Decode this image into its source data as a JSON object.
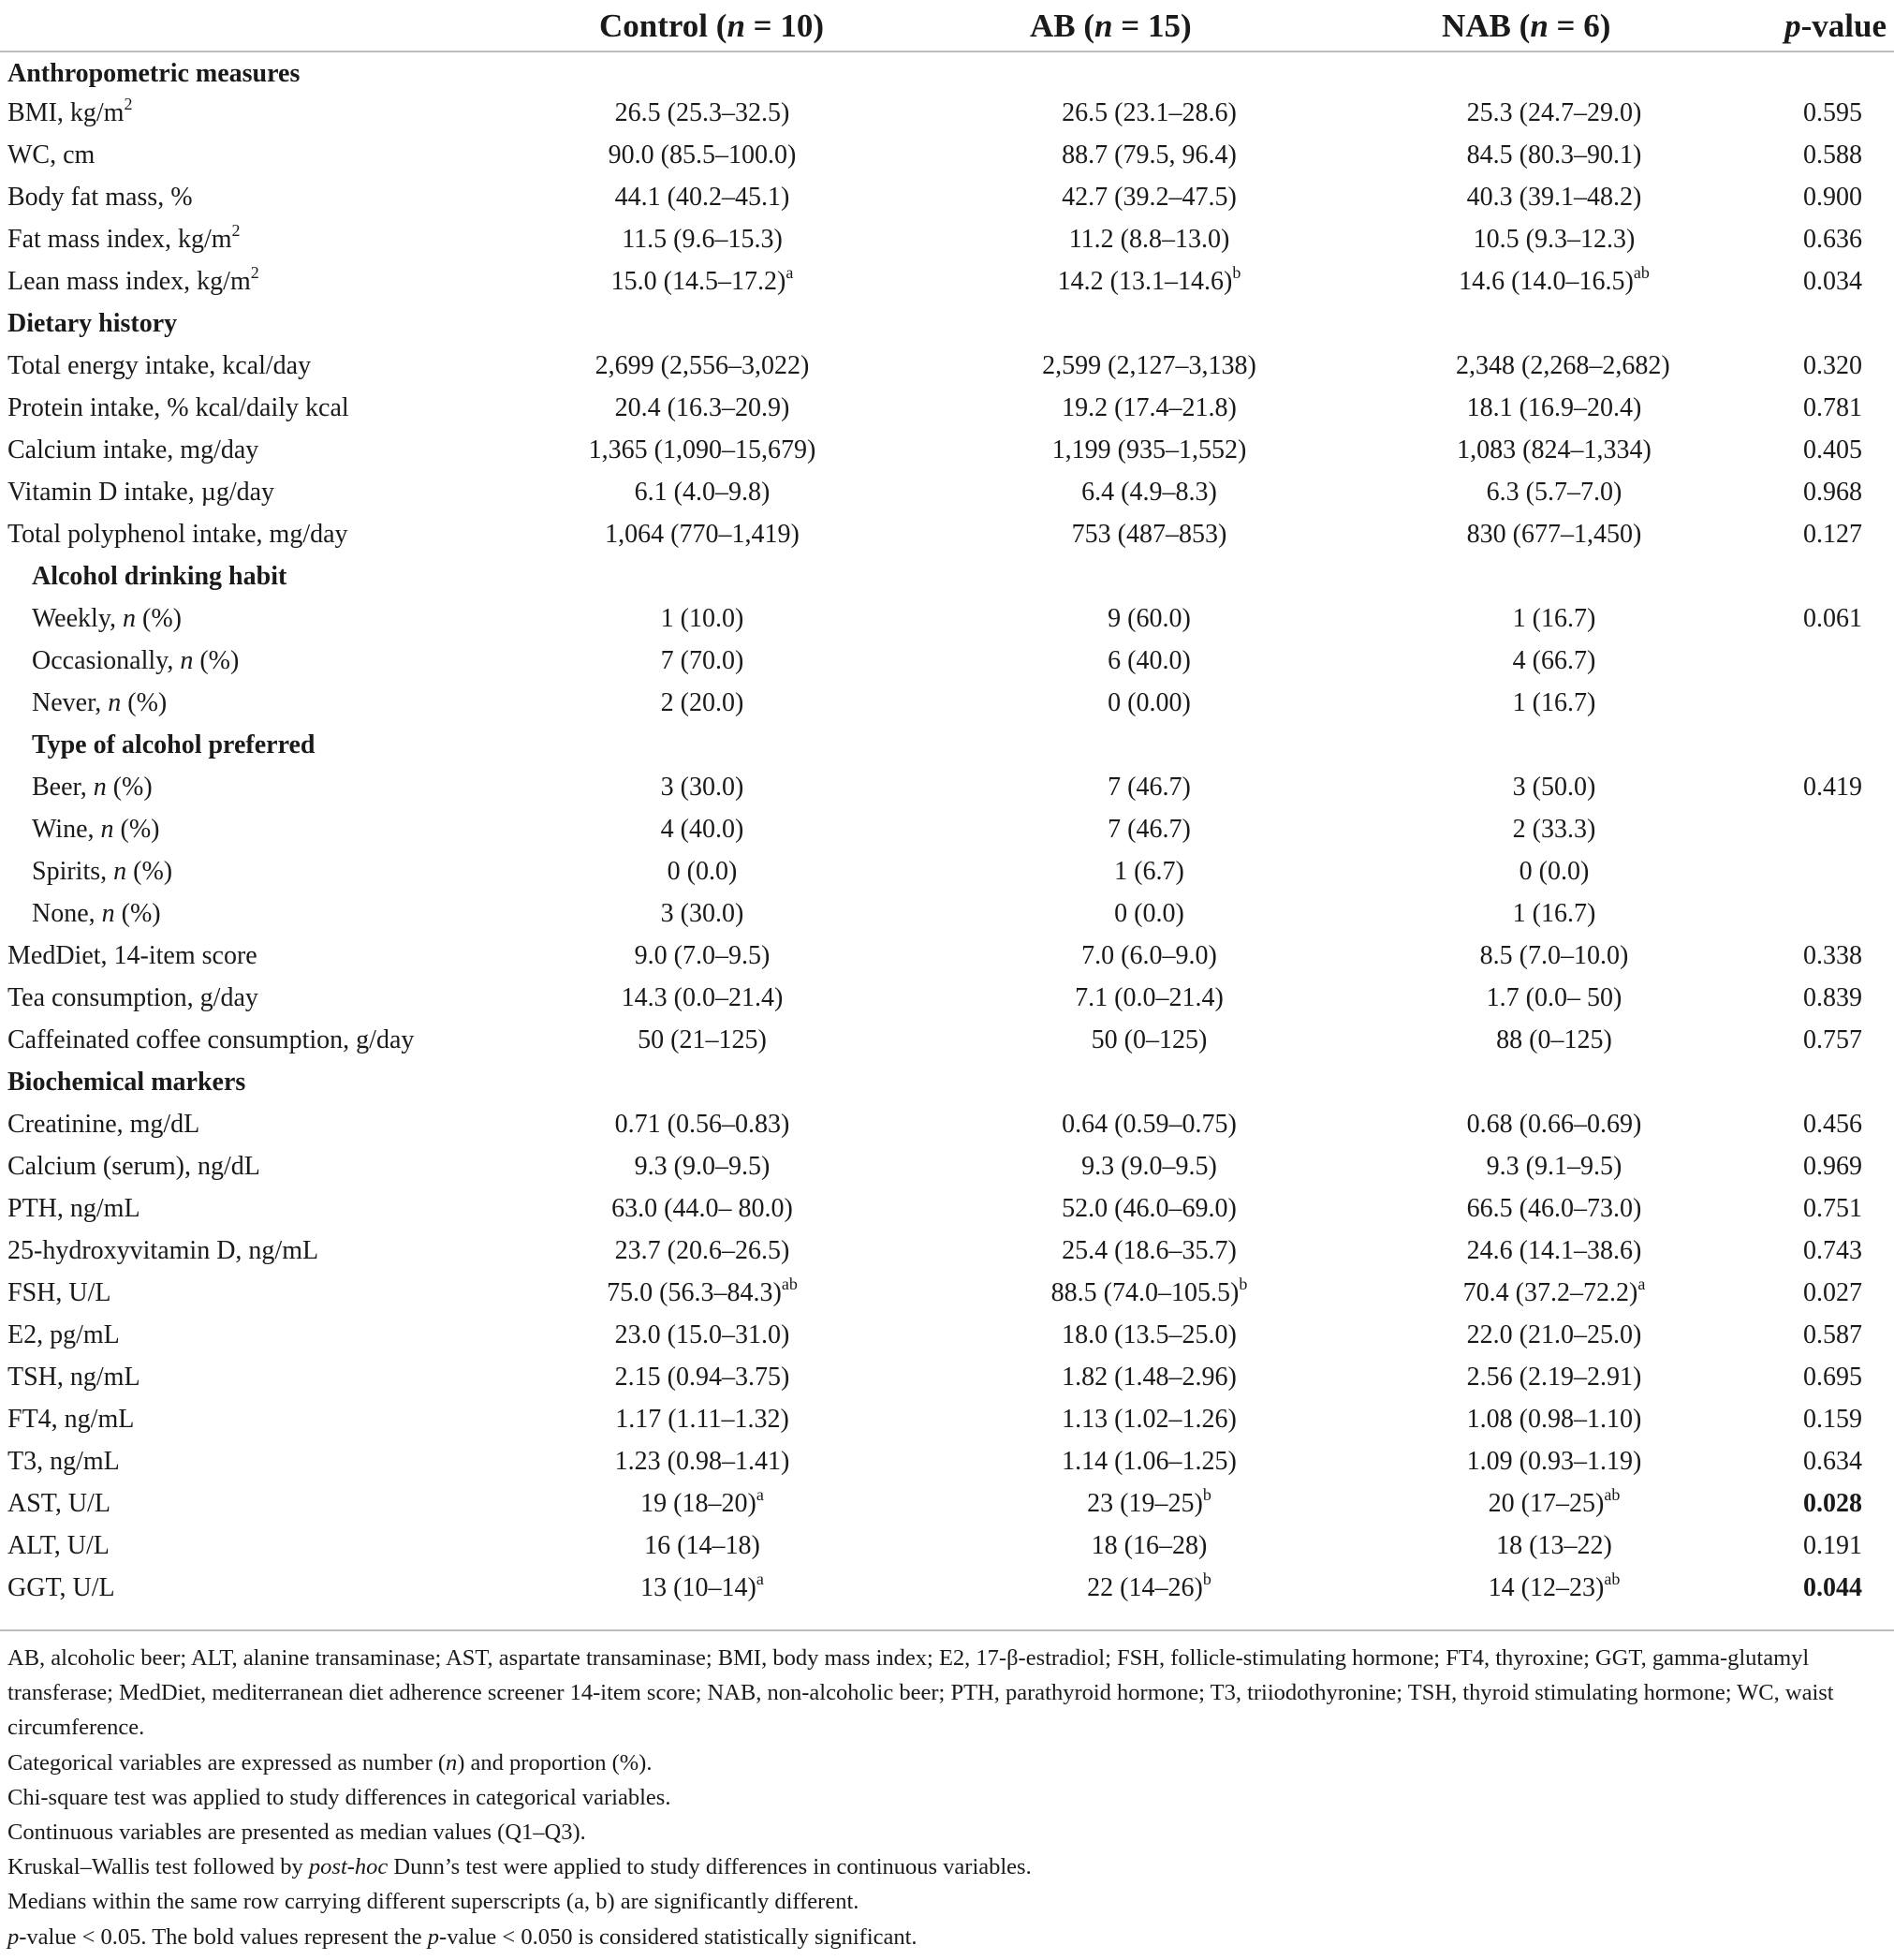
{
  "header": {
    "col1": {
      "name": "Control",
      "n": "10"
    },
    "col2": {
      "name": "AB",
      "n": "15"
    },
    "col3": {
      "name": "NAB",
      "n": "6"
    },
    "pvalue_italic": "p",
    "pvalue_rest": "-value",
    "n_label": "n",
    "equals": " = "
  },
  "rows": [
    {
      "type": "section",
      "label": "Anthropometric measures"
    },
    {
      "type": "data",
      "label": "BMI, kg/m",
      "label_sup": "2",
      "c1": "26.5 (25.3–32.5)",
      "c2": "26.5 (23.1–28.6)",
      "c3": "25.3 (24.7–29.0)",
      "p": "0.595"
    },
    {
      "type": "data",
      "label": "WC, cm",
      "c1": "90.0 (85.5–100.0)",
      "c2": "88.7 (79.5, 96.4)",
      "c3": "84.5 (80.3–90.1)",
      "p": "0.588"
    },
    {
      "type": "data",
      "label": "Body fat mass, %",
      "c1": "44.1 (40.2–45.1)",
      "c2": "42.7 (39.2–47.5)",
      "c3": "40.3 (39.1–48.2)",
      "p": "0.900"
    },
    {
      "type": "data",
      "label": "Fat mass index, kg/m",
      "label_sup": "2",
      "c1": "11.5 (9.6–15.3)",
      "c2": "11.2 (8.8–13.0)",
      "c3": "10.5 (9.3–12.3)",
      "p": "0.636"
    },
    {
      "type": "data",
      "label": "Lean mass index, kg/m",
      "label_sup": "2",
      "c1": "15.0 (14.5–17.2)",
      "c1_sup": "a",
      "c2": "14.2 (13.1–14.6)",
      "c2_sup": "b",
      "c3": "14.6 (14.0–16.5)",
      "c3_sup": "ab",
      "p": "0.034"
    },
    {
      "type": "section",
      "label": "Dietary history"
    },
    {
      "type": "data",
      "label": "Total energy intake, kcal/day",
      "c1": "2,699 (2,556–3,022)",
      "c2": "2,599 (2,127–3,138)",
      "c3": "2,348 (2,268–2,682)",
      "p": "0.320"
    },
    {
      "type": "data",
      "label": "Protein intake, % kcal/daily kcal",
      "c1": "20.4 (16.3–20.9)",
      "c2": "19.2 (17.4–21.8)",
      "c3": "18.1 (16.9–20.4)",
      "p": "0.781"
    },
    {
      "type": "data",
      "label": "Calcium intake, mg/day",
      "c1": "1,365 (1,090–15,679)",
      "c2": "1,199 (935–1,552)",
      "c3": "1,083 (824–1,334)",
      "p": "0.405"
    },
    {
      "type": "data",
      "label": "Vitamin D intake, µg/day",
      "c1": "6.1 (4.0–9.8)",
      "c2": "6.4 (4.9–8.3)",
      "c3": "6.3 (5.7–7.0)",
      "p": "0.968"
    },
    {
      "type": "data",
      "label": "Total polyphenol intake, mg/day",
      "c1": "1,064 (770–1,419)",
      "c2": "753 (487–853)",
      "c3": "830 (677–1,450)",
      "p": "0.127"
    },
    {
      "type": "section",
      "label": "Alcohol drinking habit",
      "indent": true
    },
    {
      "type": "data",
      "indent": true,
      "label": "Weekly, ",
      "label_italic": "n",
      "label_after": " (%)",
      "c1": "1 (10.0)",
      "c2": "9 (60.0)",
      "c3": "1 (16.7)",
      "p": "0.061"
    },
    {
      "type": "data",
      "indent": true,
      "label": "Occasionally, ",
      "label_italic": "n",
      "label_after": " (%)",
      "c1": "7 (70.0)",
      "c2": "6 (40.0)",
      "c3": "4 (66.7)",
      "p": ""
    },
    {
      "type": "data",
      "indent": true,
      "label": "Never, ",
      "label_italic": "n",
      "label_after": " (%)",
      "c1": "2 (20.0)",
      "c2": "0 (0.00)",
      "c3": "1 (16.7)",
      "p": ""
    },
    {
      "type": "section",
      "label": "Type of alcohol preferred",
      "indent": true
    },
    {
      "type": "data",
      "indent": true,
      "label": "Beer, ",
      "label_italic": "n",
      "label_after": " (%)",
      "c1": "3 (30.0)",
      "c2": "7 (46.7)",
      "c3": "3 (50.0)",
      "p": "0.419"
    },
    {
      "type": "data",
      "indent": true,
      "label": "Wine, ",
      "label_italic": "n",
      "label_after": " (%)",
      "c1": "4 (40.0)",
      "c2": "7 (46.7)",
      "c3": "2 (33.3)",
      "p": ""
    },
    {
      "type": "data",
      "indent": true,
      "label": "Spirits, ",
      "label_italic": "n",
      "label_after": " (%)",
      "c1": "0 (0.0)",
      "c2": "1 (6.7)",
      "c3": "0 (0.0)",
      "p": ""
    },
    {
      "type": "data",
      "indent": true,
      "label": "None, ",
      "label_italic": "n",
      "label_after": " (%)",
      "c1": "3 (30.0)",
      "c2": "0 (0.0)",
      "c3": "1 (16.7)",
      "p": ""
    },
    {
      "type": "data",
      "label": "MedDiet, 14-item score",
      "c1": "9.0 (7.0–9.5)",
      "c2": "7.0 (6.0–9.0)",
      "c3": "8.5 (7.0–10.0)",
      "p": "0.338"
    },
    {
      "type": "data",
      "label": "Tea consumption, g/day",
      "c1": "14.3 (0.0–21.4)",
      "c2": "7.1 (0.0–21.4)",
      "c3": "1.7 (0.0– 50)",
      "p": "0.839"
    },
    {
      "type": "data",
      "label": "Caffeinated coffee consumption, g/day",
      "c1": "50 (21–125)",
      "c2": "50 (0–125)",
      "c3": "88 (0–125)",
      "p": "0.757"
    },
    {
      "type": "section",
      "label": "Biochemical markers"
    },
    {
      "type": "data",
      "label": "Creatinine, mg/dL",
      "c1": "0.71 (0.56–0.83)",
      "c2": "0.64 (0.59–0.75)",
      "c3": "0.68 (0.66–0.69)",
      "p": "0.456"
    },
    {
      "type": "data",
      "label": "Calcium (serum), ng/dL",
      "c1": "9.3 (9.0–9.5)",
      "c2": "9.3 (9.0–9.5)",
      "c3": "9.3 (9.1–9.5)",
      "p": "0.969"
    },
    {
      "type": "data",
      "label": "PTH, ng/mL",
      "c1": "63.0 (44.0– 80.0)",
      "c2": "52.0 (46.0–69.0)",
      "c3": "66.5 (46.0–73.0)",
      "p": "0.751"
    },
    {
      "type": "data",
      "label": "25-hydroxyvitamin D, ng/mL",
      "c1": "23.7 (20.6–26.5)",
      "c2": "25.4 (18.6–35.7)",
      "c3": "24.6 (14.1–38.6)",
      "p": "0.743"
    },
    {
      "type": "data",
      "label": "FSH, U/L",
      "c1": "75.0 (56.3–84.3)",
      "c1_sup": "ab",
      "c2": "88.5 (74.0–105.5)",
      "c2_sup": "b",
      "c3": "70.4 (37.2–72.2)",
      "c3_sup": "a",
      "p": "0.027"
    },
    {
      "type": "data",
      "label": "E2, pg/mL",
      "c1": "23.0 (15.0–31.0)",
      "c2": "18.0 (13.5–25.0)",
      "c3": "22.0 (21.0–25.0)",
      "p": "0.587"
    },
    {
      "type": "data",
      "label": "TSH, ng/mL",
      "c1": "2.15 (0.94–3.75)",
      "c2": "1.82 (1.48–2.96)",
      "c3": "2.56 (2.19–2.91)",
      "p": "0.695"
    },
    {
      "type": "data",
      "label": "FT4, ng/mL",
      "c1": "1.17 (1.11–1.32)",
      "c2": "1.13 (1.02–1.26)",
      "c3": "1.08 (0.98–1.10)",
      "p": "0.159"
    },
    {
      "type": "data",
      "label": "T3, ng/mL",
      "c1": "1.23 (0.98–1.41)",
      "c2": "1.14 (1.06–1.25)",
      "c3": "1.09 (0.93–1.19)",
      "p": "0.634"
    },
    {
      "type": "data",
      "label": "AST, U/L",
      "c1": "19 (18–20)",
      "c1_sup": "a",
      "c2": "23 (19–25)",
      "c2_sup": "b",
      "c3": "20 (17–25)",
      "c3_sup": "ab",
      "p": "0.028",
      "p_bold": true
    },
    {
      "type": "data",
      "label": "ALT, U/L",
      "c1": "16 (14–18)",
      "c2": "18 (16–28)",
      "c3": "18 (13–22)",
      "p": "0.191"
    },
    {
      "type": "data",
      "label": "GGT, U/L",
      "c1": "13 (10–14)",
      "c1_sup": "a",
      "c2": "22 (14–26)",
      "c2_sup": "b",
      "c3": "14 (12–23)",
      "c3_sup": "ab",
      "p": "0.044",
      "p_bold": true
    }
  ],
  "notes": {
    "abbrev": "AB, alcoholic beer; ALT, alanine transaminase; AST, aspartate transaminase; BMI, body mass index; E2, 17-β-estradiol; FSH, follicle-stimulating hormone; FT4, thyroxine; GGT, gamma-glutamyl transferase; MedDiet, mediterranean diet adherence screener 14-item score; NAB, non-alcoholic beer; PTH, parathyroid hormone; T3, triiodothyronine; TSH, thyroid stimulating hormone; WC, waist circumference.",
    "categorical_pre": "Categorical variables are expressed as number (",
    "categorical_n": "n",
    "categorical_post": ") and proportion (%).",
    "chi": "Chi-square test was applied to study differences in categorical variables.",
    "continuous": "Continuous variables are presented as median values (Q1–Q3).",
    "kruskal_pre": "Kruskal–Wallis test followed by ",
    "kruskal_italic": "post-hoc",
    "kruskal_post": " Dunn’s test were applied to study differences in continuous variables.",
    "medians": "Medians within the same row carrying different superscripts (a, b) are significantly different.",
    "p_italic1": "p",
    "p_mid": "-value < 0.05. The bold values represent the ",
    "p_italic2": "p",
    "p_end": "-value < 0.050 is considered statistically significant."
  }
}
